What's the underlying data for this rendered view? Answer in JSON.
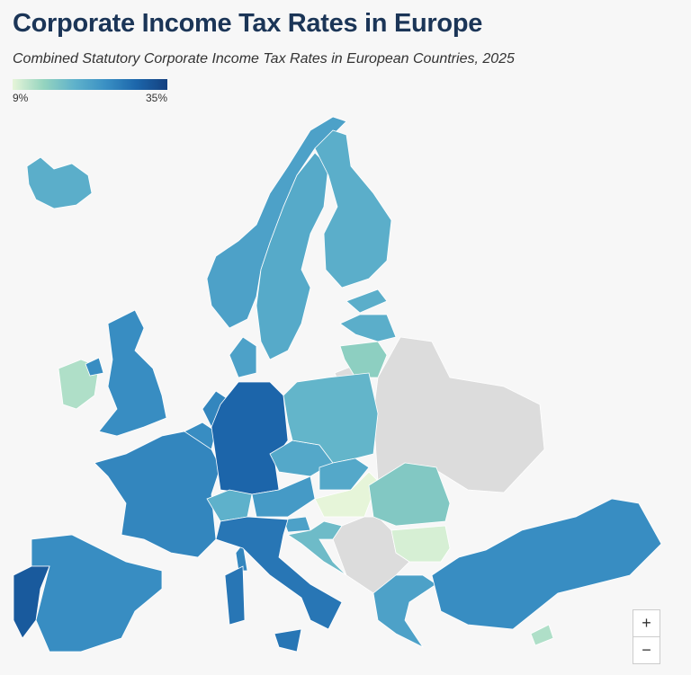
{
  "chart_data": {
    "type": "choropleth",
    "title": "Corporate Income Tax Rates in Europe",
    "subtitle": "Combined Statutory Corporate Income Tax Rates in European Countries, 2025",
    "scale": {
      "min": {
        "value": 9,
        "label": "9%"
      },
      "max": {
        "value": 35,
        "label": "35%"
      },
      "colors": [
        "#e6f5d9",
        "#95d4bf",
        "#5fb2cb",
        "#3a90c4",
        "#1c66ab",
        "#14407f"
      ]
    },
    "no_data_color": "#dcdcdc",
    "values": [
      20,
      22,
      20.6,
      20,
      20,
      15,
      12.5,
      25,
      22,
      25.8,
      25,
      25.8,
      29.9,
      19.6,
      23,
      21,
      19,
      21,
      9,
      22,
      18,
      27.8,
      25,
      31.5,
      16,
      10,
      22,
      25,
      12.5
    ]
  },
  "zoom": {
    "in": "+",
    "out": "−"
  }
}
